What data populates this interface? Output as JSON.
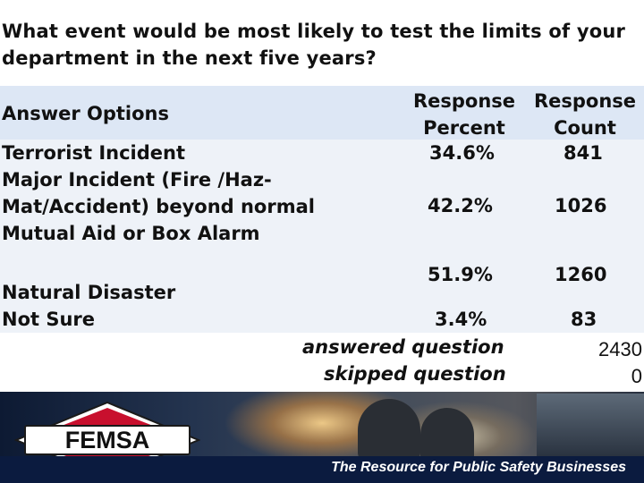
{
  "question": "What event would be most likely to test the limits of your department in the next five years?",
  "columns": {
    "answer_options": "Answer Options",
    "percent": "Response Percent",
    "count": "Response Count"
  },
  "rows": [
    {
      "label": "Terrorist Incident",
      "percent": "34.6%",
      "count": "841"
    },
    {
      "label": "Major Incident (Fire /Haz-Mat/Accident) beyond normal Mutual Aid or Box Alarm",
      "percent": "42.2%",
      "count": "1026"
    },
    {
      "label": "Natural Disaster",
      "percent": "51.9%",
      "count": "1260"
    },
    {
      "label": "Not Sure",
      "percent": "3.4%",
      "count": "83"
    }
  ],
  "summary": {
    "answered_label": "answered question",
    "answered_value": "2430",
    "skipped_label": "skipped question",
    "skipped_value": "0"
  },
  "brand": {
    "logo_text": "FEMSA",
    "tagline": "The Resource for Public Safety Businesses",
    "logo_red": "#c8102e",
    "navy": "#0b1b3f"
  }
}
